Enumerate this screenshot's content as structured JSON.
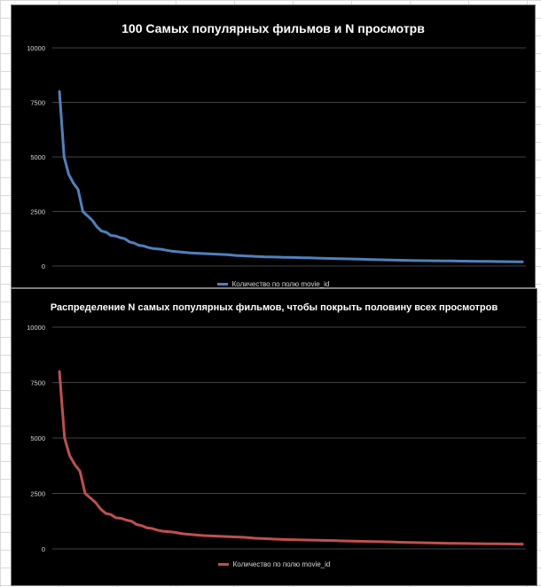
{
  "chart_data": [
    {
      "type": "line",
      "title": "100 Самых популярных фильмов и N просмотрв",
      "ylim": [
        0,
        10000
      ],
      "yticks": [
        "0",
        "2500",
        "5000",
        "7500",
        "10000"
      ],
      "gridlines": true,
      "legend_position": "bottom",
      "series": [
        {
          "name": "Количество по полю movie_id",
          "color": "#4f81bd",
          "x": [
            1,
            2,
            3,
            4,
            5,
            6,
            7,
            8,
            9,
            10,
            11,
            12,
            13,
            14,
            15,
            16,
            17,
            18,
            19,
            20,
            21,
            22,
            23,
            24,
            25,
            26,
            27,
            28,
            29,
            30,
            31,
            32,
            33,
            34,
            35,
            36,
            37,
            38,
            39,
            40,
            41,
            42,
            43,
            44,
            45,
            46,
            47,
            48,
            49,
            50,
            51,
            52,
            53,
            54,
            55,
            56,
            57,
            58,
            59,
            60,
            61,
            62,
            63,
            64,
            65,
            66,
            67,
            68,
            69,
            70,
            71,
            72,
            73,
            74,
            75,
            76,
            77,
            78,
            79,
            80,
            81,
            82,
            83,
            84,
            85,
            86,
            87,
            88,
            89,
            90,
            91,
            92,
            93,
            94,
            95,
            96,
            97,
            98,
            99,
            100
          ],
          "values": [
            8000,
            5000,
            4200,
            3800,
            3500,
            2500,
            2300,
            2100,
            1800,
            1600,
            1550,
            1400,
            1380,
            1300,
            1250,
            1100,
            1050,
            950,
            920,
            850,
            800,
            780,
            760,
            720,
            680,
            660,
            640,
            620,
            600,
            590,
            580,
            570,
            560,
            550,
            540,
            530,
            520,
            500,
            480,
            470,
            460,
            450,
            440,
            430,
            420,
            415,
            410,
            405,
            400,
            395,
            390,
            385,
            380,
            375,
            370,
            360,
            355,
            350,
            345,
            340,
            335,
            330,
            325,
            320,
            315,
            310,
            300,
            295,
            290,
            285,
            280,
            275,
            270,
            265,
            260,
            255,
            250,
            248,
            245,
            242,
            240,
            238,
            235,
            232,
            230,
            228,
            225,
            222,
            220,
            218,
            215,
            212,
            210,
            208,
            205,
            202,
            200,
            198,
            195,
            190
          ]
        }
      ]
    },
    {
      "type": "line",
      "title": "Распределение N самых популярных фильмов, чтобы покрыть половину всех просмотров",
      "ylim": [
        0,
        10000
      ],
      "yticks": [
        "0",
        "2500",
        "5000",
        "7500",
        "10000"
      ],
      "gridlines": true,
      "legend_position": "bottom",
      "series": [
        {
          "name": "Количество по полю movie_id",
          "color": "#c0504d",
          "x": [
            1,
            2,
            3,
            4,
            5,
            6,
            7,
            8,
            9,
            10,
            11,
            12,
            13,
            14,
            15,
            16,
            17,
            18,
            19,
            20,
            21,
            22,
            23,
            24,
            25,
            26,
            27,
            28,
            29,
            30,
            31,
            32,
            33,
            34,
            35,
            36,
            37,
            38,
            39,
            40,
            41,
            42,
            43,
            44,
            45,
            46,
            47,
            48,
            49,
            50,
            51,
            52,
            53,
            54,
            55,
            56,
            57,
            58,
            59,
            60,
            61,
            62,
            63,
            64,
            65,
            66,
            67,
            68,
            69,
            70,
            71,
            72,
            73,
            74,
            75,
            76,
            77,
            78,
            79,
            80,
            81,
            82,
            83,
            84,
            85,
            86,
            87,
            88,
            89,
            90,
            91
          ],
          "values": [
            8000,
            5000,
            4200,
            3800,
            3500,
            2500,
            2300,
            2100,
            1800,
            1600,
            1550,
            1400,
            1380,
            1300,
            1250,
            1100,
            1050,
            950,
            920,
            850,
            800,
            780,
            760,
            720,
            680,
            660,
            640,
            620,
            600,
            590,
            580,
            570,
            560,
            550,
            540,
            530,
            520,
            500,
            480,
            470,
            460,
            450,
            440,
            430,
            420,
            415,
            410,
            405,
            400,
            395,
            390,
            385,
            380,
            375,
            370,
            360,
            355,
            350,
            345,
            340,
            335,
            330,
            325,
            320,
            315,
            310,
            300,
            295,
            290,
            285,
            280,
            275,
            270,
            265,
            260,
            255,
            250,
            248,
            245,
            242,
            240,
            238,
            235,
            232,
            230,
            228,
            225,
            222,
            220,
            218,
            215
          ]
        }
      ]
    }
  ]
}
